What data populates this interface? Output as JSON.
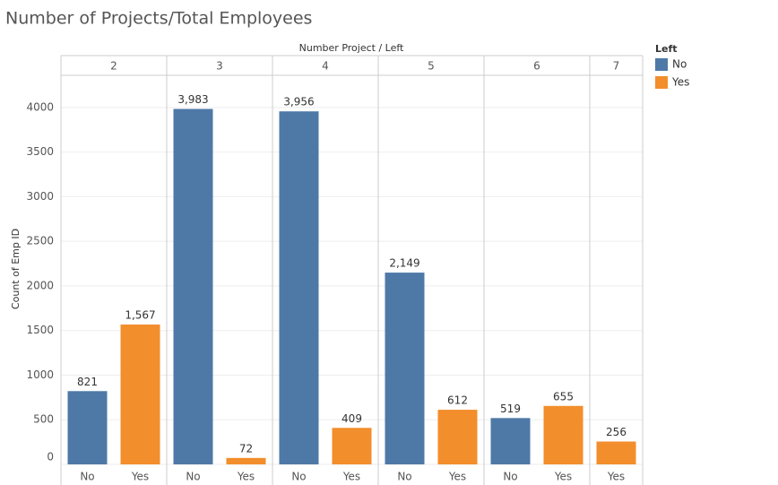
{
  "chart_data": {
    "type": "bar",
    "title": "Number of Projects/Total  Employees",
    "column_header": "Number Project  / Left",
    "y_label": "Count of Emp ID",
    "legend_title": "Left",
    "groups": [
      "2",
      "3",
      "4",
      "5",
      "6",
      "7"
    ],
    "series": [
      {
        "name": "No",
        "color": "#4e79a7",
        "values": [
          821,
          3983,
          3956,
          2149,
          519,
          null
        ],
        "value_labels": [
          "821",
          "3,983",
          "3,956",
          "2,149",
          "519",
          null
        ]
      },
      {
        "name": "Yes",
        "color": "#f28e2b",
        "values": [
          1567,
          72,
          409,
          612,
          655,
          256
        ],
        "value_labels": [
          "1,567",
          "72",
          "409",
          "612",
          "655",
          "256"
        ]
      }
    ],
    "ylim": [
      0,
      4360
    ],
    "yticks": [
      0,
      500,
      1000,
      1500,
      2000,
      2500,
      3000,
      3500,
      4000
    ],
    "grid": true,
    "legend": "right"
  }
}
